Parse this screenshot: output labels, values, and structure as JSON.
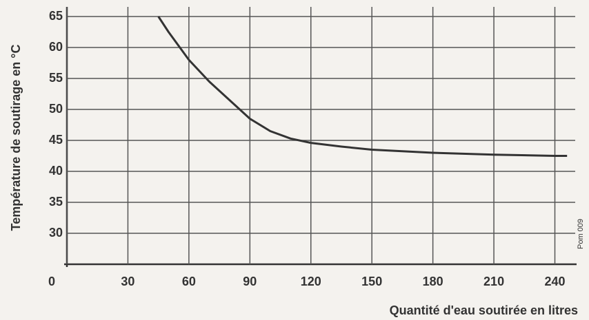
{
  "chart_data": {
    "type": "line",
    "x_label": "Quantité d'eau soutirée en litres",
    "y_label": "Température de soutirage en °C",
    "annotation": "Pom 009",
    "series": [
      {
        "color": "#333333",
        "x": [
          45,
          50,
          60,
          70,
          80,
          90,
          100,
          110,
          120,
          135,
          150,
          180,
          210,
          240,
          246
        ],
        "values": [
          65,
          62.5,
          58,
          54.5,
          51.5,
          48.5,
          46.5,
          45.3,
          44.6,
          44,
          43.5,
          43,
          42.7,
          42.5,
          42.5
        ]
      }
    ],
    "xlim": [
      0,
      250
    ],
    "xticks": [
      0,
      30,
      60,
      90,
      120,
      150,
      180,
      210,
      240
    ],
    "ylim": [
      25,
      66
    ],
    "yticks": [
      30,
      35,
      40,
      45,
      50,
      55,
      60,
      65
    ],
    "grid": true
  }
}
